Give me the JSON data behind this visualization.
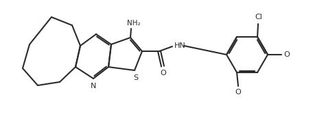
{
  "bg_color": "#ffffff",
  "line_color": "#2a2a2a",
  "line_width": 1.5,
  "figsize": [
    4.72,
    1.83
  ],
  "dpi": 100,
  "NH2": "NH₂",
  "N": "N",
  "S": "S",
  "O": "O",
  "HN": "HN",
  "Cl": "Cl",
  "OMe1": "O",
  "OMe2": "O"
}
